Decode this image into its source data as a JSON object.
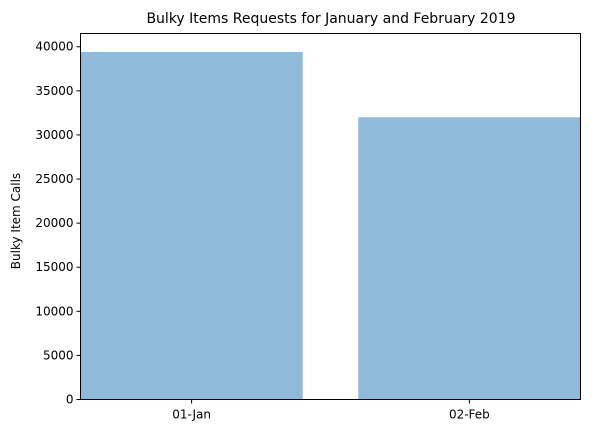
{
  "chart_data": {
    "type": "bar",
    "title": "Bulky Items Requests for January and February 2019",
    "xlabel": "",
    "ylabel": "Bulky Item Calls",
    "categories": [
      "01-Jan",
      "02-Feb"
    ],
    "values": [
      39400,
      32000
    ],
    "ylim": [
      0,
      41500
    ],
    "yticks": [
      0,
      5000,
      10000,
      15000,
      20000,
      25000,
      30000,
      35000,
      40000
    ],
    "bar_color": "#8fbad9",
    "grid": false,
    "legend": "none"
  }
}
